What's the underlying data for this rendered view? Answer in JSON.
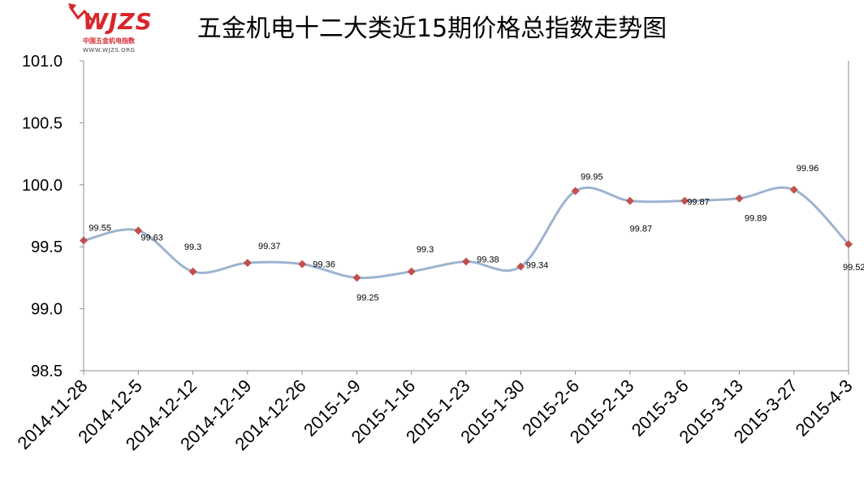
{
  "logo": {
    "mark": "WJZS",
    "cn_text": "中国五金机电指数",
    "url": "WWW.WJZS.ORG"
  },
  "colors": {
    "line": "#9db3cf",
    "marker": "#c0504d",
    "logo": "#d8262a"
  },
  "chart_data": {
    "type": "line",
    "title": "五金机电十二大类近15期价格总指数走势图",
    "xlabel": "",
    "ylabel": "",
    "ylim": [
      98.5,
      101.0
    ],
    "ytick_labels": [
      "101.0",
      "100.5",
      "100.0",
      "99.5",
      "99.0",
      "98.5"
    ],
    "categories": [
      "2014-11-28",
      "2014-12-5",
      "2014-12-12",
      "2014-12-19",
      "2014-12-26",
      "2015-1-9",
      "2015-1-16",
      "2015-1-23",
      "2015-1-30",
      "2015-2-6",
      "2015-2-13",
      "2015-3-6",
      "2015-3-13",
      "2015-3-27",
      "2015-4-3"
    ],
    "series": [
      {
        "values": [
          99.55,
          99.63,
          99.3,
          99.37,
          99.36,
          99.25,
          99.3,
          99.38,
          99.34,
          99.95,
          99.87,
          99.87,
          99.89,
          99.96,
          99.52
        ],
        "data_labels": [
          "99.55",
          "99.63",
          "99.3",
          "99.37",
          "99.36",
          "99.25",
          "99.3",
          "99.38",
          "99.34",
          "99.95",
          "99.87",
          "99.87",
          "99.89",
          "99.96",
          "99.52"
        ]
      }
    ],
    "grid": false,
    "legend": "none",
    "smooth": true,
    "marker": "diamond"
  }
}
